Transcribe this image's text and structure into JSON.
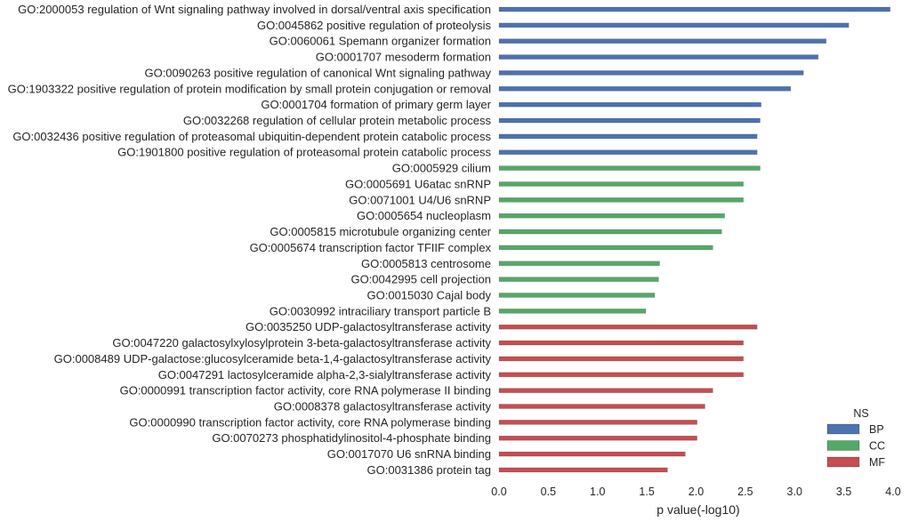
{
  "chart_data": {
    "type": "bar",
    "orientation": "horizontal",
    "title": "",
    "xlabel": "p value(-log10)",
    "ylabel": "",
    "xlim": [
      0,
      4.0
    ],
    "xticks": [
      "0.0",
      "0.5",
      "1.0",
      "1.5",
      "2.0",
      "2.5",
      "3.0",
      "3.5",
      "4.0"
    ],
    "grid": false,
    "legend": {
      "title": "NS",
      "placement": "bottom-right",
      "entries": [
        {
          "name": "BP",
          "color": "#4c72b0"
        },
        {
          "name": "CC",
          "color": "#55a868"
        },
        {
          "name": "MF",
          "color": "#c44e52"
        }
      ]
    },
    "bars": [
      {
        "label": "GO:2000053 regulation of Wnt signaling pathway involved in dorsal/ventral axis specification",
        "ns": "BP",
        "value": 3.97
      },
      {
        "label": "GO:0045862 positive regulation of proteolysis",
        "ns": "BP",
        "value": 3.55
      },
      {
        "label": "GO:0060061 Spemann organizer formation",
        "ns": "BP",
        "value": 3.32
      },
      {
        "label": "GO:0001707 mesoderm formation",
        "ns": "BP",
        "value": 3.24
      },
      {
        "label": "GO:0090263 positive regulation of canonical Wnt signaling pathway",
        "ns": "BP",
        "value": 3.09
      },
      {
        "label": "GO:1903322 positive regulation of protein modification by small protein conjugation or removal",
        "ns": "BP",
        "value": 2.96
      },
      {
        "label": "GO:0001704 formation of primary germ layer",
        "ns": "BP",
        "value": 2.66
      },
      {
        "label": "GO:0032268 regulation of cellular protein metabolic process",
        "ns": "BP",
        "value": 2.65
      },
      {
        "label": "GO:0032436 positive regulation of proteasomal ubiquitin-dependent protein catabolic process",
        "ns": "BP",
        "value": 2.62
      },
      {
        "label": "GO:1901800 positive regulation of proteasomal protein catabolic process",
        "ns": "BP",
        "value": 2.62
      },
      {
        "label": "GO:0005929 cilium",
        "ns": "CC",
        "value": 2.65
      },
      {
        "label": "GO:0005691 U6atac snRNP",
        "ns": "CC",
        "value": 2.48
      },
      {
        "label": "GO:0071001 U4/U6 snRNP",
        "ns": "CC",
        "value": 2.48
      },
      {
        "label": "GO:0005654 nucleoplasm",
        "ns": "CC",
        "value": 2.29
      },
      {
        "label": "GO:0005815 microtubule organizing center",
        "ns": "CC",
        "value": 2.26
      },
      {
        "label": "GO:0005674 transcription factor TFIIF complex",
        "ns": "CC",
        "value": 2.17
      },
      {
        "label": "GO:0005813 centrosome",
        "ns": "CC",
        "value": 1.63
      },
      {
        "label": "GO:0042995 cell projection",
        "ns": "CC",
        "value": 1.62
      },
      {
        "label": "GO:0015030 Cajal body",
        "ns": "CC",
        "value": 1.58
      },
      {
        "label": "GO:0030992 intraciliary transport particle B",
        "ns": "CC",
        "value": 1.49
      },
      {
        "label": "GO:0035250 UDP-galactosyltransferase activity",
        "ns": "MF",
        "value": 2.62
      },
      {
        "label": "GO:0047220 galactosylxylosylprotein 3-beta-galactosyltransferase activity",
        "ns": "MF",
        "value": 2.48
      },
      {
        "label": "GO:0008489 UDP-galactose:glucosylceramide beta-1,4-galactosyltransferase activity",
        "ns": "MF",
        "value": 2.48
      },
      {
        "label": "GO:0047291 lactosylceramide alpha-2,3-sialyltransferase activity",
        "ns": "MF",
        "value": 2.48
      },
      {
        "label": "GO:0000991 transcription factor activity, core RNA polymerase II binding",
        "ns": "MF",
        "value": 2.17
      },
      {
        "label": "GO:0008378 galactosyltransferase activity",
        "ns": "MF",
        "value": 2.09
      },
      {
        "label": "GO:0000990 transcription factor activity, core RNA polymerase binding",
        "ns": "MF",
        "value": 2.01
      },
      {
        "label": "GO:0070273 phosphatidylinositol-4-phosphate binding",
        "ns": "MF",
        "value": 2.01
      },
      {
        "label": "GO:0017070 U6 snRNA binding",
        "ns": "MF",
        "value": 1.89
      },
      {
        "label": "GO:0031386 protein tag",
        "ns": "MF",
        "value": 1.71
      }
    ]
  }
}
